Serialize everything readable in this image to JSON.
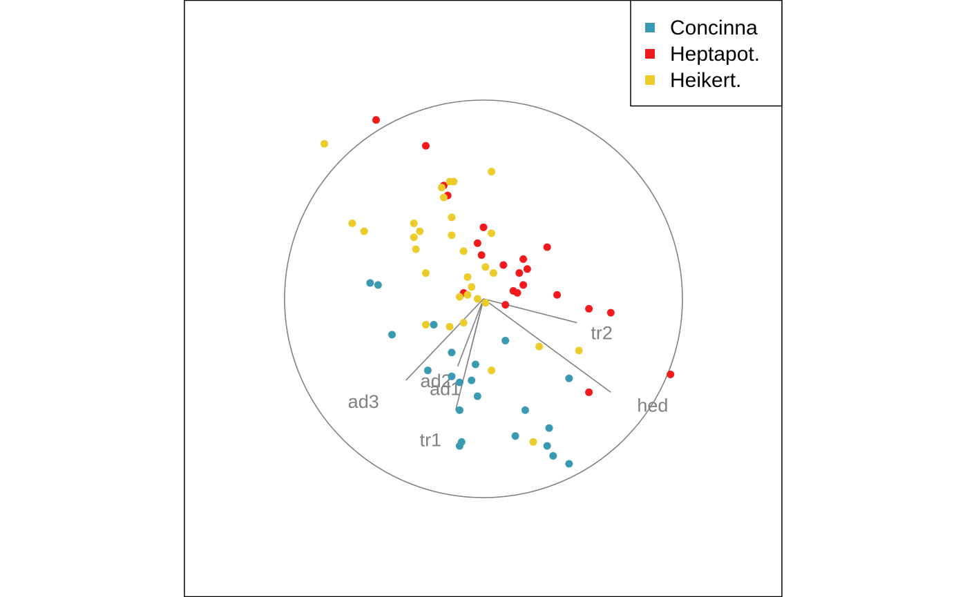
{
  "chart_data": {
    "type": "scatter",
    "title": "",
    "xlabel": "",
    "ylabel": "",
    "axes_visible": false,
    "grid": false,
    "legend_placement": "top-right",
    "xlim": [
      -1.56,
      1.56
    ],
    "ylim": [
      -1.56,
      1.56
    ],
    "correlation_circle": {
      "center": [
        0,
        0
      ],
      "radius": 1.0,
      "color": "#808080"
    },
    "series": [
      {
        "name": "Concinna",
        "color": "#3A9AB2",
        "points": [
          [
            -0.57,
            0.08
          ],
          [
            -0.53,
            0.07
          ],
          [
            -0.46,
            -0.18
          ],
          [
            -0.25,
            -0.13
          ],
          [
            -0.16,
            -0.27
          ],
          [
            -0.28,
            -0.36
          ],
          [
            -0.16,
            -0.39
          ],
          [
            -0.12,
            -0.42
          ],
          [
            -0.04,
            -0.33
          ],
          [
            -0.06,
            -0.41
          ],
          [
            -0.03,
            -0.49
          ],
          [
            -0.12,
            -0.56
          ],
          [
            0.11,
            -0.21
          ],
          [
            0.21,
            -0.56
          ],
          [
            0.43,
            -0.4
          ],
          [
            0.33,
            -0.65
          ],
          [
            0.32,
            -0.74
          ],
          [
            -0.12,
            -0.74
          ],
          [
            0.16,
            -0.69
          ],
          [
            0.35,
            -0.79
          ],
          [
            0.43,
            -0.83
          ],
          [
            -0.11,
            -0.72
          ]
        ]
      },
      {
        "name": "Heptapot.",
        "color": "#F11B1E",
        "points": [
          [
            -0.54,
            0.9
          ],
          [
            -0.29,
            0.77
          ],
          [
            -0.2,
            0.57
          ],
          [
            -0.18,
            0.52
          ],
          [
            0.0,
            0.36
          ],
          [
            -0.03,
            0.28
          ],
          [
            -0.01,
            0.22
          ],
          [
            0.1,
            0.17
          ],
          [
            0.2,
            0.2
          ],
          [
            0.22,
            0.15
          ],
          [
            0.18,
            0.13
          ],
          [
            0.2,
            0.07
          ],
          [
            0.17,
            0.03
          ],
          [
            0.15,
            0.04
          ],
          [
            -0.1,
            0.03
          ],
          [
            0.32,
            0.26
          ],
          [
            0.37,
            0.02
          ],
          [
            0.53,
            -0.05
          ],
          [
            0.64,
            -0.07
          ],
          [
            0.94,
            -0.38
          ],
          [
            0.53,
            -0.47
          ],
          [
            0.11,
            -0.03
          ]
        ]
      },
      {
        "name": "Heikert.",
        "color": "#EBCC2A",
        "points": [
          [
            -0.8,
            0.78
          ],
          [
            -0.66,
            0.38
          ],
          [
            -0.6,
            0.34
          ],
          [
            -0.35,
            0.38
          ],
          [
            -0.35,
            0.31
          ],
          [
            -0.32,
            0.34
          ],
          [
            -0.34,
            0.25
          ],
          [
            -0.29,
            0.13
          ],
          [
            -0.16,
            0.32
          ],
          [
            -0.16,
            0.41
          ],
          [
            -0.2,
            0.51
          ],
          [
            -0.21,
            0.56
          ],
          [
            -0.17,
            0.59
          ],
          [
            -0.15,
            0.59
          ],
          [
            0.04,
            0.64
          ],
          [
            0.04,
            0.33
          ],
          [
            -0.1,
            0.24
          ],
          [
            -0.08,
            0.11
          ],
          [
            -0.06,
            0.06
          ],
          [
            -0.03,
            0.0
          ],
          [
            0.01,
            -0.02
          ],
          [
            -0.08,
            0.02
          ],
          [
            -0.12,
            0.01
          ],
          [
            0.01,
            0.16
          ],
          [
            0.05,
            0.13
          ],
          [
            -0.29,
            -0.13
          ],
          [
            -0.17,
            -0.14
          ],
          [
            -0.1,
            -0.12
          ],
          [
            0.04,
            -0.36
          ],
          [
            0.28,
            -0.24
          ],
          [
            0.48,
            -0.26
          ],
          [
            0.25,
            -0.72
          ]
        ]
      }
    ],
    "vectors": [
      {
        "label": "tr2",
        "x": 0.47,
        "y": -0.12
      },
      {
        "label": "hed",
        "x": 0.64,
        "y": -0.47
      },
      {
        "label": "ad2",
        "x": -0.13,
        "y": -0.34
      },
      {
        "label": "ad1",
        "x": -0.09,
        "y": -0.36
      },
      {
        "label": "ad3",
        "x": -0.39,
        "y": -0.41
      },
      {
        "label": "tr1",
        "x": -0.14,
        "y": -0.56
      }
    ]
  }
}
